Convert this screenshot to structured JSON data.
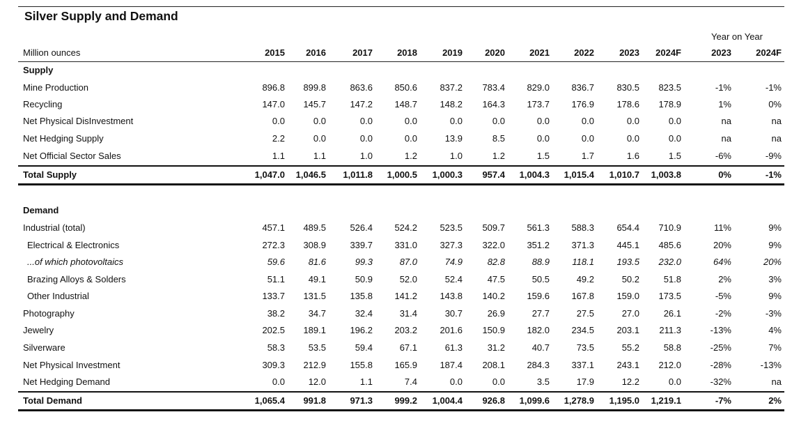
{
  "title": "Silver Supply and Demand",
  "yoy_header": "Year on Year",
  "header": {
    "unit": "Million ounces",
    "years": [
      "2015",
      "2016",
      "2017",
      "2018",
      "2019",
      "2020",
      "2021",
      "2022",
      "2023",
      "2024F"
    ],
    "yoy": [
      "2023",
      "2024F"
    ]
  },
  "supply": {
    "label": "Supply",
    "rows": [
      {
        "label": "Mine Production",
        "values": [
          "896.8",
          "899.8",
          "863.6",
          "850.6",
          "837.2",
          "783.4",
          "829.0",
          "836.7",
          "830.5",
          "823.5"
        ],
        "yoy": [
          "-1%",
          "-1%"
        ]
      },
      {
        "label": "Recycling",
        "values": [
          "147.0",
          "145.7",
          "147.2",
          "148.7",
          "148.2",
          "164.3",
          "173.7",
          "176.9",
          "178.6",
          "178.9"
        ],
        "yoy": [
          "1%",
          "0%"
        ]
      },
      {
        "label": "Net Physical DisInvestment",
        "values": [
          "0.0",
          "0.0",
          "0.0",
          "0.0",
          "0.0",
          "0.0",
          "0.0",
          "0.0",
          "0.0",
          "0.0"
        ],
        "yoy": [
          "na",
          "na"
        ]
      },
      {
        "label": "Net Hedging Supply",
        "values": [
          "2.2",
          "0.0",
          "0.0",
          "0.0",
          "13.9",
          "8.5",
          "0.0",
          "0.0",
          "0.0",
          "0.0"
        ],
        "yoy": [
          "na",
          "na"
        ]
      },
      {
        "label": "Net Official Sector Sales",
        "values": [
          "1.1",
          "1.1",
          "1.0",
          "1.2",
          "1.0",
          "1.2",
          "1.5",
          "1.7",
          "1.6",
          "1.5"
        ],
        "yoy": [
          "-6%",
          "-9%"
        ]
      }
    ],
    "total": {
      "label": "Total Supply",
      "values": [
        "1,047.0",
        "1,046.5",
        "1,011.8",
        "1,000.5",
        "1,000.3",
        "957.4",
        "1,004.3",
        "1,015.4",
        "1,010.7",
        "1,003.8"
      ],
      "yoy": [
        "0%",
        "-1%"
      ]
    }
  },
  "demand": {
    "label": "Demand",
    "rows": [
      {
        "label": "Industrial (total)",
        "values": [
          "457.1",
          "489.5",
          "526.4",
          "524.2",
          "523.5",
          "509.7",
          "561.3",
          "588.3",
          "654.4",
          "710.9"
        ],
        "yoy": [
          "11%",
          "9%"
        ]
      },
      {
        "label": "Electrical & Electronics",
        "values": [
          "272.3",
          "308.9",
          "339.7",
          "331.0",
          "327.3",
          "322.0",
          "351.2",
          "371.3",
          "445.1",
          "485.6"
        ],
        "yoy": [
          "20%",
          "9%"
        ]
      },
      {
        "label": "...of which photovoltaics",
        "values": [
          "59.6",
          "81.6",
          "99.3",
          "87.0",
          "74.9",
          "82.8",
          "88.9",
          "118.1",
          "193.5",
          "232.0"
        ],
        "yoy": [
          "64%",
          "20%"
        ]
      },
      {
        "label": "Brazing Alloys & Solders",
        "values": [
          "51.1",
          "49.1",
          "50.9",
          "52.0",
          "52.4",
          "47.5",
          "50.5",
          "49.2",
          "50.2",
          "51.8"
        ],
        "yoy": [
          "2%",
          "3%"
        ]
      },
      {
        "label": "Other Industrial",
        "values": [
          "133.7",
          "131.5",
          "135.8",
          "141.2",
          "143.8",
          "140.2",
          "159.6",
          "167.8",
          "159.0",
          "173.5"
        ],
        "yoy": [
          "-5%",
          "9%"
        ]
      },
      {
        "label": "Photography",
        "values": [
          "38.2",
          "34.7",
          "32.4",
          "31.4",
          "30.7",
          "26.9",
          "27.7",
          "27.5",
          "27.0",
          "26.1"
        ],
        "yoy": [
          "-2%",
          "-3%"
        ]
      },
      {
        "label": "Jewelry",
        "values": [
          "202.5",
          "189.1",
          "196.2",
          "203.2",
          "201.6",
          "150.9",
          "182.0",
          "234.5",
          "203.1",
          "211.3"
        ],
        "yoy": [
          "-13%",
          "4%"
        ]
      },
      {
        "label": "Silverware",
        "values": [
          "58.3",
          "53.5",
          "59.4",
          "67.1",
          "61.3",
          "31.2",
          "40.7",
          "73.5",
          "55.2",
          "58.8"
        ],
        "yoy": [
          "-25%",
          "7%"
        ]
      },
      {
        "label": "Net Physical Investment",
        "values": [
          "309.3",
          "212.9",
          "155.8",
          "165.9",
          "187.4",
          "208.1",
          "284.3",
          "337.1",
          "243.1",
          "212.0"
        ],
        "yoy": [
          "-28%",
          "-13%"
        ]
      },
      {
        "label": "Net Hedging Demand",
        "values": [
          "0.0",
          "12.0",
          "1.1",
          "7.4",
          "0.0",
          "0.0",
          "3.5",
          "17.9",
          "12.2",
          "0.0"
        ],
        "yoy": [
          "-32%",
          "na"
        ]
      }
    ],
    "total": {
      "label": "Total Demand",
      "values": [
        "1,065.4",
        "991.8",
        "971.3",
        "999.2",
        "1,004.4",
        "926.8",
        "1,099.6",
        "1,278.9",
        "1,195.0",
        "1,219.1"
      ],
      "yoy": [
        "-7%",
        "2%"
      ]
    }
  }
}
